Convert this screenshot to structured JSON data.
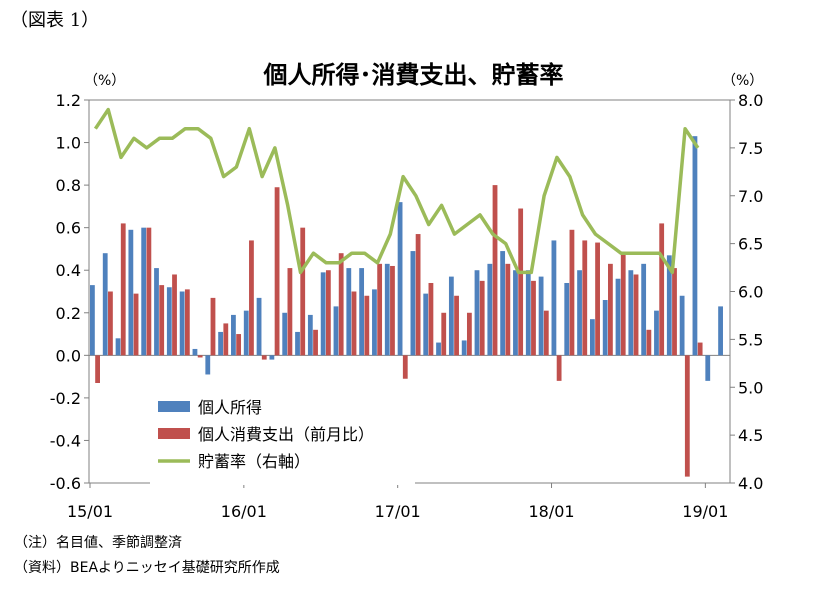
{
  "figure_label": "（図表 1）",
  "notes": {
    "note": "（注）名目値、季節調整済",
    "source": "（資料）BEAよりニッセイ基礎研究所作成"
  },
  "chart_data": {
    "type": "bar",
    "title": "個人所得･消費支出、貯蓄率",
    "left_unit": "（%）",
    "right_unit": "（%）",
    "x_tick_labels": [
      "15/01",
      "16/01",
      "17/01",
      "18/01",
      "19/01"
    ],
    "x_tick_indices": [
      0,
      12,
      24,
      36,
      48
    ],
    "y_left": {
      "ylim": [
        -0.6,
        1.2
      ],
      "ticks": [
        "1.2",
        "1.0",
        "0.8",
        "0.6",
        "0.4",
        "0.2",
        "0.0",
        "-0.2",
        "-0.4",
        "-0.6"
      ]
    },
    "y_right": {
      "ylim": [
        4.0,
        8.0
      ],
      "ticks": [
        "8.0",
        "7.5",
        "7.0",
        "6.5",
        "6.0",
        "5.5",
        "5.0",
        "4.5",
        "4.0"
      ]
    },
    "series": [
      {
        "name": "個人所得",
        "type": "bar",
        "axis": "left",
        "color": "#4f81bd",
        "values": [
          0.33,
          0.48,
          0.08,
          0.59,
          0.6,
          0.41,
          0.32,
          0.3,
          0.03,
          -0.09,
          0.11,
          0.19,
          0.21,
          0.27,
          -0.02,
          0.2,
          0.11,
          0.19,
          0.39,
          0.23,
          0.41,
          0.41,
          0.31,
          0.43,
          0.72,
          0.49,
          0.29,
          0.06,
          0.37,
          0.07,
          0.4,
          0.43,
          0.49,
          0.4,
          0.4,
          0.37,
          0.54,
          0.34,
          0.4,
          0.17,
          0.26,
          0.36,
          0.4,
          0.43,
          0.21,
          0.47,
          0.28,
          1.03,
          -0.12,
          0.23
        ]
      },
      {
        "name": "個人消費支出（前月比）",
        "type": "bar",
        "axis": "left",
        "color": "#c0504d",
        "values": [
          -0.13,
          0.3,
          0.62,
          0.29,
          0.6,
          0.33,
          0.38,
          0.31,
          -0.01,
          0.27,
          0.15,
          0.1,
          0.54,
          -0.02,
          0.79,
          0.41,
          0.6,
          0.12,
          0.4,
          0.48,
          0.3,
          0.28,
          0.43,
          0.42,
          -0.11,
          0.57,
          0.34,
          0.2,
          0.28,
          0.2,
          0.35,
          0.8,
          0.43,
          0.69,
          0.35,
          0.21,
          -0.12,
          0.59,
          0.54,
          0.53,
          0.43,
          0.48,
          0.38,
          0.12,
          0.62,
          0.41,
          -0.57,
          0.06
        ]
      },
      {
        "name": "貯蓄率（右軸）",
        "type": "line",
        "axis": "right",
        "color": "#9bbb59",
        "values": [
          7.7,
          7.9,
          7.4,
          7.6,
          7.5,
          7.6,
          7.6,
          7.7,
          7.7,
          7.6,
          7.2,
          7.3,
          7.7,
          7.2,
          7.5,
          6.9,
          6.2,
          6.4,
          6.3,
          6.3,
          6.4,
          6.4,
          6.3,
          6.6,
          7.2,
          7.0,
          6.7,
          6.9,
          6.6,
          6.7,
          6.8,
          6.6,
          6.5,
          6.2,
          6.2,
          7.0,
          7.4,
          7.2,
          6.8,
          6.6,
          6.5,
          6.4,
          6.4,
          6.4,
          6.4,
          6.2,
          7.7,
          7.5
        ]
      }
    ],
    "legend_position": "bottom-left inside plot",
    "grid": false
  }
}
